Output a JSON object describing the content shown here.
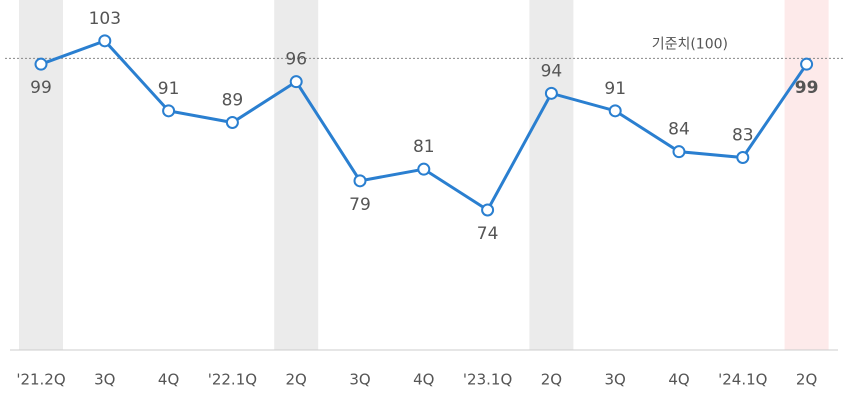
{
  "chart_data": {
    "type": "line",
    "categories": [
      "'21.2Q",
      "3Q",
      "4Q",
      "'22.1Q",
      "2Q",
      "3Q",
      "4Q",
      "'23.1Q",
      "2Q",
      "3Q",
      "4Q",
      "'24.1Q",
      "2Q"
    ],
    "values": [
      99,
      103,
      91,
      89,
      96,
      79,
      81,
      74,
      94,
      91,
      84,
      83,
      99
    ],
    "color": "#2a7fd0",
    "ylim": [
      50,
      110
    ],
    "label_positions": [
      "below",
      "above",
      "above",
      "above",
      "above",
      "below",
      "above",
      "below",
      "above",
      "above",
      "above",
      "above",
      "below"
    ],
    "emphasis_index": 12,
    "emphasis_color": "#c00000",
    "bands": [
      {
        "index": 0,
        "color": "#ebebeb"
      },
      {
        "index": 4,
        "color": "#ebebeb"
      },
      {
        "index": 8,
        "color": "#ebebeb"
      },
      {
        "index": 12,
        "color": "#fdeaea"
      }
    ],
    "reference_line": {
      "value": 100,
      "label": "기준치(100)"
    }
  }
}
